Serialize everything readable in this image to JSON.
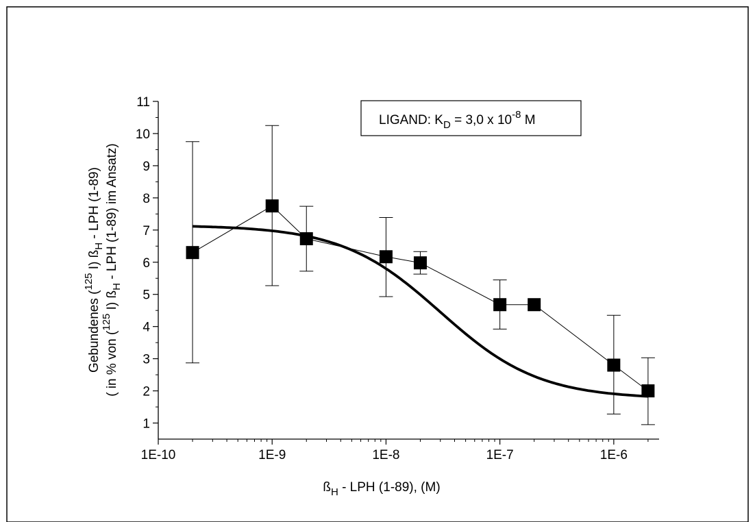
{
  "chart_data": {
    "type": "scatter",
    "x_scale": "log",
    "xlim": [
      1e-10,
      2.5e-06
    ],
    "ylim": [
      0.5,
      11
    ],
    "x_ticks": [
      {
        "value": 1e-10,
        "label": "1E-10"
      },
      {
        "value": 1e-09,
        "label": "1E-9"
      },
      {
        "value": 1e-08,
        "label": "1E-8"
      },
      {
        "value": 1e-07,
        "label": "1E-7"
      },
      {
        "value": 1e-06,
        "label": "1E-6"
      }
    ],
    "y_ticks": [
      1,
      2,
      3,
      4,
      5,
      6,
      7,
      8,
      9,
      10,
      11
    ],
    "xlabel": {
      "pre": "ß",
      "sub": "H",
      "post": " - LPH (1-89), (M)"
    },
    "ylabel_line1": {
      "pre": "Gebundenes (",
      "sup": "125",
      "mid": " I) ß",
      "sub": "H",
      "post": " - LPH (1-89)"
    },
    "ylabel_line2": {
      "pre": "( in % von (",
      "sup": "125",
      "mid": " I) ß",
      "sub": "H",
      "post": " - LPH (1-89) im Ansatz)"
    },
    "annotation": {
      "pre": "LIGAND: K",
      "sub": "D",
      "mid": " =  3,0 x 10",
      "sup": "-8",
      "post": " M"
    },
    "grid": false,
    "series": [
      {
        "kind": "data",
        "x": [
          2e-10,
          1e-09,
          2e-09,
          1e-08,
          2e-08,
          1e-07,
          2e-07,
          1e-06,
          2e-06
        ],
        "y": [
          6.3,
          7.75,
          6.73,
          6.17,
          5.98,
          4.68,
          4.68,
          2.8,
          2.0
        ],
        "y_err_low": [
          2.87,
          5.27,
          5.72,
          4.93,
          5.63,
          3.92,
          null,
          1.28,
          0.95
        ],
        "y_err_high": [
          9.75,
          10.25,
          7.74,
          7.39,
          6.33,
          5.45,
          null,
          4.35,
          3.03
        ],
        "color": "#000000"
      },
      {
        "kind": "fit",
        "model": "one-site competition",
        "top": 7.15,
        "bottom": 1.75,
        "kd": 3e-08,
        "x_range": [
          2e-10,
          2e-06
        ],
        "color": "#000000"
      }
    ]
  }
}
